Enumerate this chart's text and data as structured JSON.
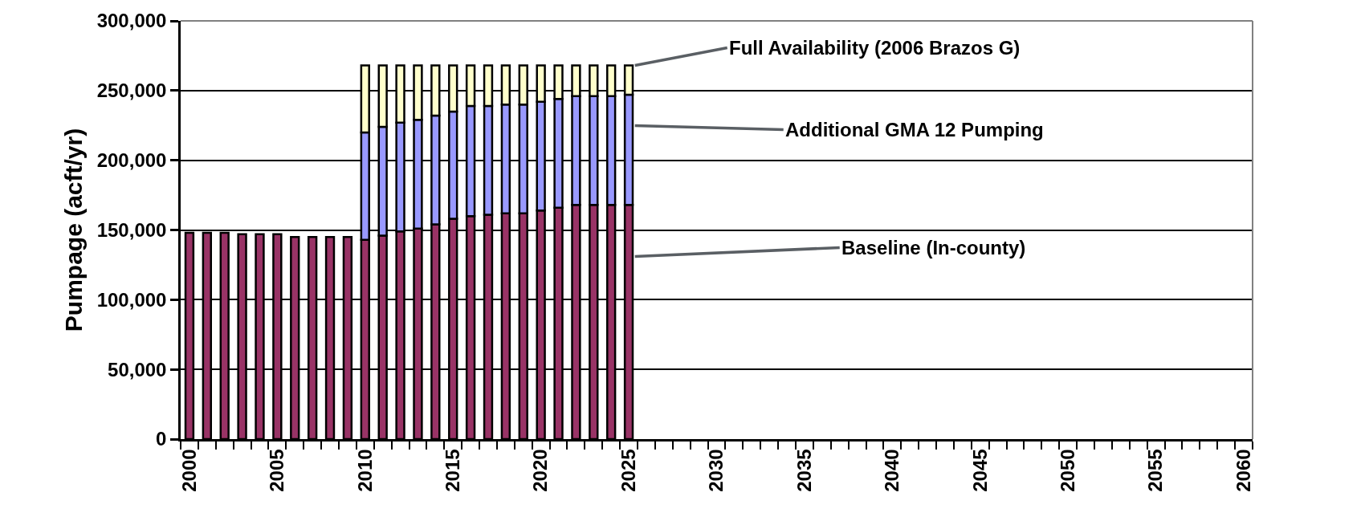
{
  "chart_data": {
    "type": "bar",
    "stacked": true,
    "ylabel": "Pumpage (acft/yr)",
    "categories": [
      "2000",
      null,
      null,
      null,
      null,
      "2005",
      null,
      null,
      null,
      null,
      "2010",
      null,
      null,
      null,
      null,
      "2015",
      null,
      null,
      null,
      null,
      "2020",
      null,
      null,
      null,
      null,
      "2025",
      null,
      null,
      null,
      null,
      "2030",
      null,
      null,
      null,
      null,
      "2035",
      null,
      null,
      null,
      null,
      "2040",
      null,
      null,
      null,
      null,
      "2045",
      null,
      null,
      null,
      null,
      "2050",
      null,
      null,
      null,
      null,
      "2055",
      null,
      null,
      null,
      null,
      "2060"
    ],
    "series": [
      {
        "name": "Baseline (In-county)",
        "color": "#993366",
        "values": [
          148000,
          148000,
          148000,
          147000,
          147000,
          147000,
          145000,
          145000,
          145000,
          145000,
          143000,
          146000,
          149000,
          151000,
          154000,
          158000,
          160000,
          161000,
          162000,
          162000,
          164000,
          166000,
          168000,
          168000,
          168000,
          168000,
          null,
          null,
          null,
          null,
          null,
          null,
          null,
          null,
          null,
          null,
          null,
          null,
          null,
          null,
          null,
          null,
          null,
          null,
          null,
          null,
          null,
          null,
          null,
          null,
          null,
          null,
          null,
          null,
          null,
          null,
          null,
          null,
          null,
          null,
          null
        ]
      },
      {
        "name": "Additional GMA 12 Pumping",
        "color": "#9999ff",
        "values": [
          null,
          null,
          null,
          null,
          null,
          null,
          null,
          null,
          null,
          null,
          77000,
          78000,
          78000,
          78000,
          78000,
          77000,
          79000,
          78000,
          78000,
          78000,
          78000,
          78000,
          78000,
          78000,
          78000,
          79000,
          null,
          null,
          null,
          null,
          null,
          null,
          null,
          null,
          null,
          null,
          null,
          null,
          null,
          null,
          null,
          null,
          null,
          null,
          null,
          null,
          null,
          null,
          null,
          null,
          null,
          null,
          null,
          null,
          null,
          null,
          null,
          null,
          null,
          null,
          null
        ]
      },
      {
        "name": "Full Availability (2006 Brazos G)",
        "color": "#ffffcc",
        "values": [
          null,
          null,
          null,
          null,
          null,
          null,
          null,
          null,
          null,
          null,
          48000,
          44000,
          41000,
          39000,
          36000,
          33000,
          29000,
          29000,
          28000,
          28000,
          26000,
          24000,
          22000,
          22000,
          22000,
          21000,
          null,
          null,
          null,
          null,
          null,
          null,
          null,
          null,
          null,
          null,
          null,
          null,
          null,
          null,
          null,
          null,
          null,
          null,
          null,
          null,
          null,
          null,
          null,
          null,
          null,
          null,
          null,
          null,
          null,
          null,
          null,
          null,
          null,
          null,
          null
        ]
      }
    ],
    "ylim": [
      0,
      300000
    ],
    "yticks": [
      {
        "value": 0,
        "label": "0"
      },
      {
        "value": 50000,
        "label": "50,000"
      },
      {
        "value": 100000,
        "label": "100,000"
      },
      {
        "value": 150000,
        "label": "150,000"
      },
      {
        "value": 200000,
        "label": "200,000"
      },
      {
        "value": 250000,
        "label": "250,000"
      },
      {
        "value": 300000,
        "label": "300,000"
      }
    ],
    "grid": "y",
    "legend": false
  }
}
